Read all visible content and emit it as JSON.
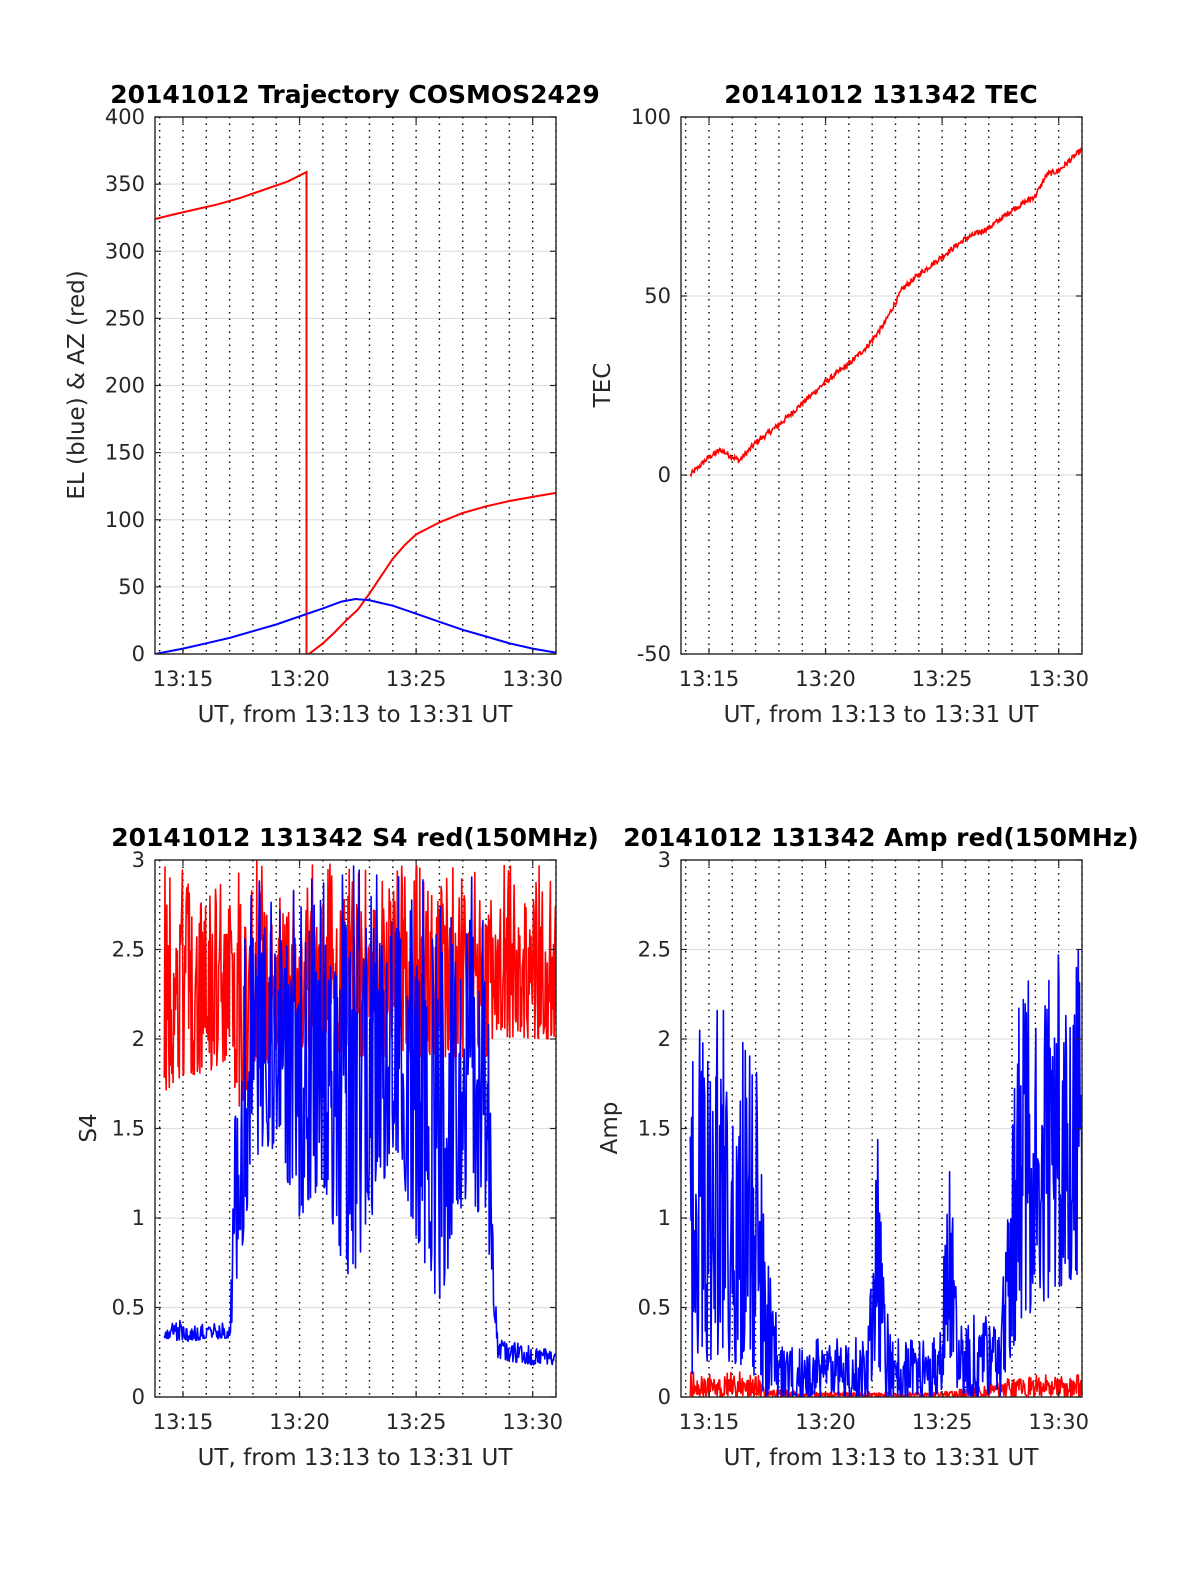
{
  "chart_data": [
    {
      "id": "traj",
      "type": "line",
      "title": "20141012 Trajectory COSMOS2429",
      "xlabel": "UT, from 13:13 to 13:31 UT",
      "ylabel": "EL (blue) & AZ (red)",
      "xlim": [
        13.8,
        31.0
      ],
      "ylim": [
        0,
        400
      ],
      "x_ticks": [
        {
          "v": 15,
          "label": "13:15"
        },
        {
          "v": 20,
          "label": "13:20"
        },
        {
          "v": 25,
          "label": "13:25"
        },
        {
          "v": 30,
          "label": "13:30"
        }
      ],
      "y_ticks": [
        {
          "v": 0,
          "label": "0"
        },
        {
          "v": 50,
          "label": "50"
        },
        {
          "v": 100,
          "label": "100"
        },
        {
          "v": 150,
          "label": "150"
        },
        {
          "v": 200,
          "label": "200"
        },
        {
          "v": 250,
          "label": "250"
        },
        {
          "v": 300,
          "label": "300"
        },
        {
          "v": 350,
          "label": "350"
        },
        {
          "v": 400,
          "label": "400"
        }
      ],
      "grid": "y-solid, x-dotted every 1 min",
      "series": [
        {
          "color": "#ff0000",
          "x": [
            13.8,
            14.5,
            15.5,
            16.5,
            17.5,
            18.5,
            19.5,
            20.3,
            20.3,
            20.4,
            21.0,
            21.5,
            22.0,
            22.5,
            23.0,
            23.5,
            24.0,
            24.5,
            25.0,
            26.0,
            27.0,
            28.0,
            29.0,
            30.0,
            31.0
          ],
          "y": [
            324,
            327,
            331,
            335,
            340,
            346,
            352,
            359,
            0,
            0,
            8,
            16,
            25,
            33,
            45,
            58,
            71,
            81,
            89,
            98,
            105,
            110,
            114,
            117,
            120
          ]
        },
        {
          "color": "#0000ff",
          "x": [
            13.8,
            15.0,
            16.0,
            17.0,
            18.0,
            19.0,
            20.0,
            21.0,
            21.8,
            22.4,
            23.0,
            24.0,
            25.0,
            26.0,
            27.0,
            28.0,
            29.0,
            30.0,
            31.0
          ],
          "y": [
            0,
            4,
            8,
            12,
            17,
            22,
            28,
            34,
            39,
            41,
            40,
            36,
            30,
            24,
            18,
            13,
            8,
            4,
            1
          ]
        }
      ]
    },
    {
      "id": "tec",
      "type": "line",
      "title": "20141012 131342 TEC",
      "xlabel": "UT, from 13:13 to 13:31 UT",
      "ylabel": "TEC",
      "xlim": [
        13.8,
        31.0
      ],
      "ylim": [
        -50,
        100
      ],
      "x_ticks": [
        {
          "v": 15,
          "label": "13:15"
        },
        {
          "v": 20,
          "label": "13:20"
        },
        {
          "v": 25,
          "label": "13:25"
        },
        {
          "v": 30,
          "label": "13:30"
        }
      ],
      "y_ticks": [
        {
          "v": -50,
          "label": "-50"
        },
        {
          "v": 0,
          "label": "0"
        },
        {
          "v": 50,
          "label": "50"
        },
        {
          "v": 100,
          "label": "100"
        }
      ],
      "grid": "y-solid, x-dotted every 1 min",
      "series": [
        {
          "color": "#ff0000",
          "x": [
            14.2,
            15.0,
            15.5,
            16.3,
            17.0,
            18.0,
            19.0,
            20.0,
            21.0,
            21.8,
            22.5,
            23.3,
            24.0,
            25.0,
            26.0,
            27.0,
            28.0,
            29.0,
            29.5,
            30.0,
            31.0
          ],
          "y": [
            0,
            5,
            7,
            4,
            9,
            14,
            20,
            26,
            31,
            36,
            42,
            52,
            56,
            61,
            66,
            69,
            74,
            78,
            84,
            85,
            91
          ]
        }
      ]
    },
    {
      "id": "s4",
      "type": "line",
      "title": "20141012 131342 S4 red(150MHz)",
      "xlabel": "UT, from 13:13 to 13:31 UT",
      "ylabel": "S4",
      "xlim": [
        13.8,
        31.0
      ],
      "ylim": [
        0,
        3
      ],
      "x_ticks": [
        {
          "v": 15,
          "label": "13:15"
        },
        {
          "v": 20,
          "label": "13:20"
        },
        {
          "v": 25,
          "label": "13:25"
        },
        {
          "v": 30,
          "label": "13:30"
        }
      ],
      "y_ticks": [
        {
          "v": 0,
          "label": "0"
        },
        {
          "v": 0.5,
          "label": "0.5"
        },
        {
          "v": 1,
          "label": "1"
        },
        {
          "v": 1.5,
          "label": "1.5"
        },
        {
          "v": 2,
          "label": "2"
        },
        {
          "v": 2.5,
          "label": "2.5"
        },
        {
          "v": 3,
          "label": "3"
        }
      ],
      "grid": "y-solid, x-dotted every 1 min",
      "series": [
        {
          "color": "#ff0000",
          "x": [
            14.2,
            15.0,
            16.0,
            17.0,
            17.4,
            18.0,
            19.0,
            20.0,
            21.0,
            22.0,
            23.0,
            24.0,
            25.0,
            26.0,
            27.0,
            28.0,
            28.5,
            29.0,
            30.0,
            31.0
          ],
          "y_min": [
            1.7,
            1.8,
            1.8,
            1.9,
            1.6,
            1.8,
            1.9,
            1.9,
            1.9,
            1.9,
            1.9,
            1.9,
            1.9,
            1.9,
            1.9,
            1.9,
            2.0,
            2.0,
            2.0,
            2.0
          ],
          "y_max": [
            3,
            3,
            3,
            3,
            3,
            3,
            3,
            3,
            3,
            3,
            3,
            3,
            3,
            3,
            3,
            3,
            3,
            3,
            3,
            3
          ]
        },
        {
          "color": "#0000ff",
          "x": [
            14.2,
            15.0,
            16.0,
            17.0,
            17.4,
            18.0,
            19.0,
            20.0,
            21.0,
            22.0,
            23.0,
            24.0,
            25.0,
            26.0,
            27.0,
            28.0,
            28.5,
            29.0,
            30.0,
            31.0
          ],
          "y_min": [
            0.33,
            0.31,
            0.32,
            0.33,
            0.7,
            1.3,
            1.4,
            1.0,
            1.2,
            0.6,
            0.9,
            1.4,
            0.9,
            0.5,
            1.1,
            1.0,
            0.22,
            0.2,
            0.18,
            0.18
          ],
          "y_max": [
            0.42,
            0.43,
            0.41,
            0.42,
            3,
            3,
            3,
            3,
            3,
            3,
            3,
            3,
            3,
            3,
            3,
            3,
            0.35,
            0.33,
            0.3,
            0.26
          ]
        }
      ]
    },
    {
      "id": "amp",
      "type": "line",
      "title": "20141012 131342 Amp red(150MHz)",
      "xlabel": "UT, from 13:13 to 13:31 UT",
      "ylabel": "Amp",
      "xlim": [
        13.8,
        31.0
      ],
      "ylim": [
        0,
        3
      ],
      "x_ticks": [
        {
          "v": 15,
          "label": "13:15"
        },
        {
          "v": 20,
          "label": "13:20"
        },
        {
          "v": 25,
          "label": "13:25"
        },
        {
          "v": 30,
          "label": "13:30"
        }
      ],
      "y_ticks": [
        {
          "v": 0,
          "label": "0"
        },
        {
          "v": 0.5,
          "label": "0.5"
        },
        {
          "v": 1,
          "label": "1"
        },
        {
          "v": 1.5,
          "label": "1.5"
        },
        {
          "v": 2,
          "label": "2"
        },
        {
          "v": 2.5,
          "label": "2.5"
        },
        {
          "v": 3,
          "label": "3"
        }
      ],
      "grid": "y-solid, x-dotted every 1 min",
      "series": [
        {
          "color": "#ff0000",
          "x": [
            14.2,
            15.0,
            16.0,
            17.0,
            17.4,
            20.0,
            25.0,
            28.3,
            29.0,
            30.0,
            31.0
          ],
          "y_min": [
            0,
            0,
            0,
            0,
            0,
            0,
            0,
            0,
            0,
            0,
            0
          ],
          "y_max": [
            0.15,
            0.14,
            0.15,
            0.16,
            0.05,
            0.03,
            0.03,
            0.12,
            0.13,
            0.14,
            0.13
          ]
        },
        {
          "color": "#0000ff",
          "x": [
            14.2,
            14.6,
            15.0,
            16.0,
            17.0,
            17.4,
            18.0,
            19.0,
            20.0,
            21.0,
            21.8,
            22.2,
            22.6,
            23.0,
            24.0,
            25.0,
            25.2,
            25.5,
            25.8,
            26.5,
            27.5,
            28.3,
            29.0,
            30.0,
            31.0
          ],
          "y_min": [
            0,
            0.2,
            0.2,
            0.2,
            0.1,
            0,
            0,
            0,
            0,
            0,
            0,
            0.2,
            0,
            0,
            0,
            0,
            0.3,
            0.1,
            0,
            0,
            0,
            0.4,
            0.5,
            0.6,
            0.7
          ],
          "y_max": [
            2.65,
            2.4,
            2.3,
            2.3,
            2.3,
            1.0,
            0.38,
            0.35,
            0.35,
            0.35,
            0.4,
            1.55,
            0.5,
            0.35,
            0.35,
            0.4,
            1.85,
            0.9,
            0.4,
            0.55,
            0.4,
            2.4,
            2.55,
            2.55,
            2.6
          ]
        }
      ]
    }
  ]
}
